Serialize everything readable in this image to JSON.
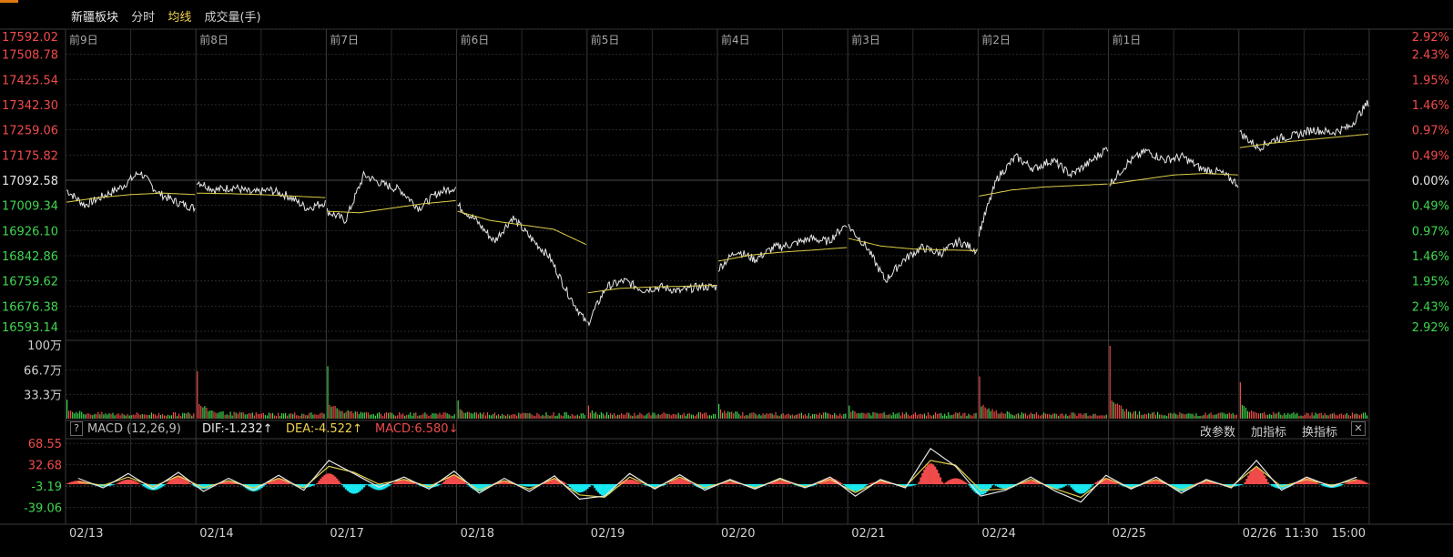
{
  "header": {
    "title": "新疆板块",
    "tab_time": "分时",
    "tab_ma": "均线",
    "tab_volume": "成交量(手)"
  },
  "macd_header": {
    "help": "?",
    "name": "MACD (12,26,9)",
    "dif": "DIF:-1.232↑",
    "dea": "DEA:-4.522↑",
    "macd": "MACD:6.580↓",
    "btn_params": "改参数",
    "btn_add": "加指标",
    "btn_switch": "换指标",
    "btn_close": "✕"
  },
  "colors": {
    "up": "#f04b4b",
    "down": "#3fd74f",
    "price_line": "#e6e6e6",
    "avg_line": "#e0d04a",
    "grid": "#2a2a2a",
    "frame": "#3a3a3a",
    "macd_down": "#18e8f0",
    "orange_top": "#e07a10"
  },
  "chart_data": [
    {
      "type": "line",
      "name": "intraday_price",
      "prev_close": 17092.58,
      "ylim": [
        16593.14,
        17592.02
      ],
      "y_ticks": [
        "17592.02",
        "17508.78",
        "17425.54",
        "17342.30",
        "17259.06",
        "17175.82",
        "17092.58",
        "17009.34",
        "16926.10",
        "16842.86",
        "16759.62",
        "16676.38",
        "16593.14"
      ],
      "pct_ticks": [
        "2.92%",
        "2.43%",
        "1.95%",
        "1.46%",
        "0.97%",
        "0.49%",
        "0.00%",
        "0.49%",
        "0.97%",
        "1.46%",
        "1.95%",
        "2.43%",
        "2.92%"
      ],
      "day_labels": [
        "前9日",
        "前8日",
        "前7日",
        "前6日",
        "前5日",
        "前4日",
        "前3日",
        "前2日",
        "前1日"
      ],
      "x_labels": [
        "02/13",
        "02/14",
        "02/17",
        "02/18",
        "02/19",
        "02/20",
        "02/21",
        "02/24",
        "02/25",
        "02/26",
        "11:30",
        "15:00"
      ],
      "days": [
        {
          "open": 17050,
          "close": 17055,
          "avg": [
            17020,
            17035,
            17045,
            17050,
            17045
          ],
          "price": [
            17060,
            17010,
            17040,
            17070,
            17120,
            17050,
            17020,
            17000
          ]
        },
        {
          "open": 17060,
          "close": 17020,
          "avg": [
            17050,
            17048,
            17045,
            17040,
            17035
          ],
          "price": [
            17090,
            17060,
            17070,
            17050,
            17060,
            17040,
            17000,
            17020
          ]
        },
        {
          "open": 17000,
          "close": 17070,
          "avg": [
            16990,
            16985,
            17000,
            17015,
            17025
          ],
          "price": [
            16990,
            16960,
            17110,
            17080,
            17060,
            17000,
            17050,
            17070
          ]
        },
        {
          "open": 17020,
          "close": 16870,
          "avg": [
            16990,
            16960,
            16945,
            16930,
            16880
          ],
          "price": [
            17010,
            16960,
            16890,
            16970,
            16900,
            16840,
            16720,
            16620
          ]
        },
        {
          "open": 16700,
          "close": 16740,
          "avg": [
            16720,
            16735,
            16740,
            16742,
            16745
          ],
          "price": [
            16620,
            16740,
            16760,
            16730,
            16740,
            16725,
            16740,
            16740
          ]
        },
        {
          "open": 16800,
          "close": 16910,
          "avg": [
            16825,
            16845,
            16855,
            16862,
            16870
          ],
          "price": [
            16800,
            16860,
            16830,
            16870,
            16880,
            16900,
            16890,
            16950
          ]
        },
        {
          "open": 16940,
          "close": 16860,
          "avg": [
            16900,
            16875,
            16865,
            16862,
            16860
          ],
          "price": [
            16940,
            16870,
            16760,
            16830,
            16870,
            16850,
            16890,
            16860
          ]
        },
        {
          "open": 16920,
          "close": 17200,
          "avg": [
            17040,
            17060,
            17070,
            17075,
            17080
          ],
          "price": [
            16920,
            17100,
            17170,
            17130,
            17160,
            17110,
            17150,
            17200
          ]
        },
        {
          "open": 17090,
          "close": 17100,
          "avg": [
            17080,
            17095,
            17110,
            17115,
            17110
          ],
          "price": [
            17080,
            17150,
            17190,
            17160,
            17170,
            17130,
            17120,
            17080
          ]
        },
        {
          "open": 17250,
          "close": 17350,
          "avg": [
            17200,
            17215,
            17225,
            17235,
            17245
          ],
          "price": [
            17250,
            17200,
            17230,
            17240,
            17260,
            17250,
            17270,
            17350
          ]
        }
      ]
    },
    {
      "type": "bar",
      "name": "volume",
      "y_ticks": [
        "100万",
        "66.7万",
        "33.3万"
      ],
      "ylim": [
        0,
        1000000
      ],
      "spikes": [
        260000,
        650000,
        720000,
        250000,
        180000,
        200000,
        180000,
        580000,
        1000000,
        500000
      ]
    },
    {
      "type": "bar",
      "name": "macd",
      "y_ticks": [
        "68.55",
        "32.68",
        "-3.19",
        "-39.06"
      ],
      "ylim": [
        -55,
        75
      ],
      "bars": [
        6,
        -4,
        8,
        -10,
        14,
        -8,
        5,
        -12,
        10,
        -6,
        18,
        -16,
        -10,
        8,
        -6,
        15,
        -12,
        6,
        -4,
        9,
        -14,
        -20,
        8,
        -5,
        10,
        -8,
        4,
        -6,
        6,
        -5,
        10,
        -12,
        5,
        -4,
        35,
        10,
        -18,
        -8,
        6,
        -8,
        -16,
        10,
        -6,
        8,
        -12,
        5,
        -4,
        28,
        -8,
        10,
        -6,
        8
      ],
      "dif": [
        10,
        -6,
        18,
        -8,
        20,
        -12,
        10,
        -10,
        15,
        -10,
        40,
        18,
        -5,
        12,
        -8,
        22,
        -15,
        10,
        -12,
        14,
        -25,
        -20,
        18,
        -8,
        16,
        -10,
        8,
        -8,
        10,
        -6,
        12,
        -20,
        8,
        -6,
        60,
        30,
        -20,
        -10,
        12,
        -12,
        -30,
        15,
        -8,
        12,
        -15,
        8,
        -6,
        40,
        -10,
        12,
        -4,
        12
      ],
      "dea": [
        4,
        -2,
        12,
        -4,
        14,
        -6,
        6,
        -6,
        10,
        -6,
        30,
        20,
        0,
        8,
        -4,
        16,
        -10,
        6,
        -8,
        10,
        -18,
        -22,
        12,
        -6,
        12,
        -6,
        6,
        -6,
        8,
        -4,
        8,
        -14,
        6,
        -4,
        40,
        32,
        -10,
        -8,
        8,
        -8,
        -22,
        10,
        -6,
        8,
        -10,
        6,
        -4,
        30,
        -4,
        8,
        -2,
        8
      ]
    }
  ]
}
